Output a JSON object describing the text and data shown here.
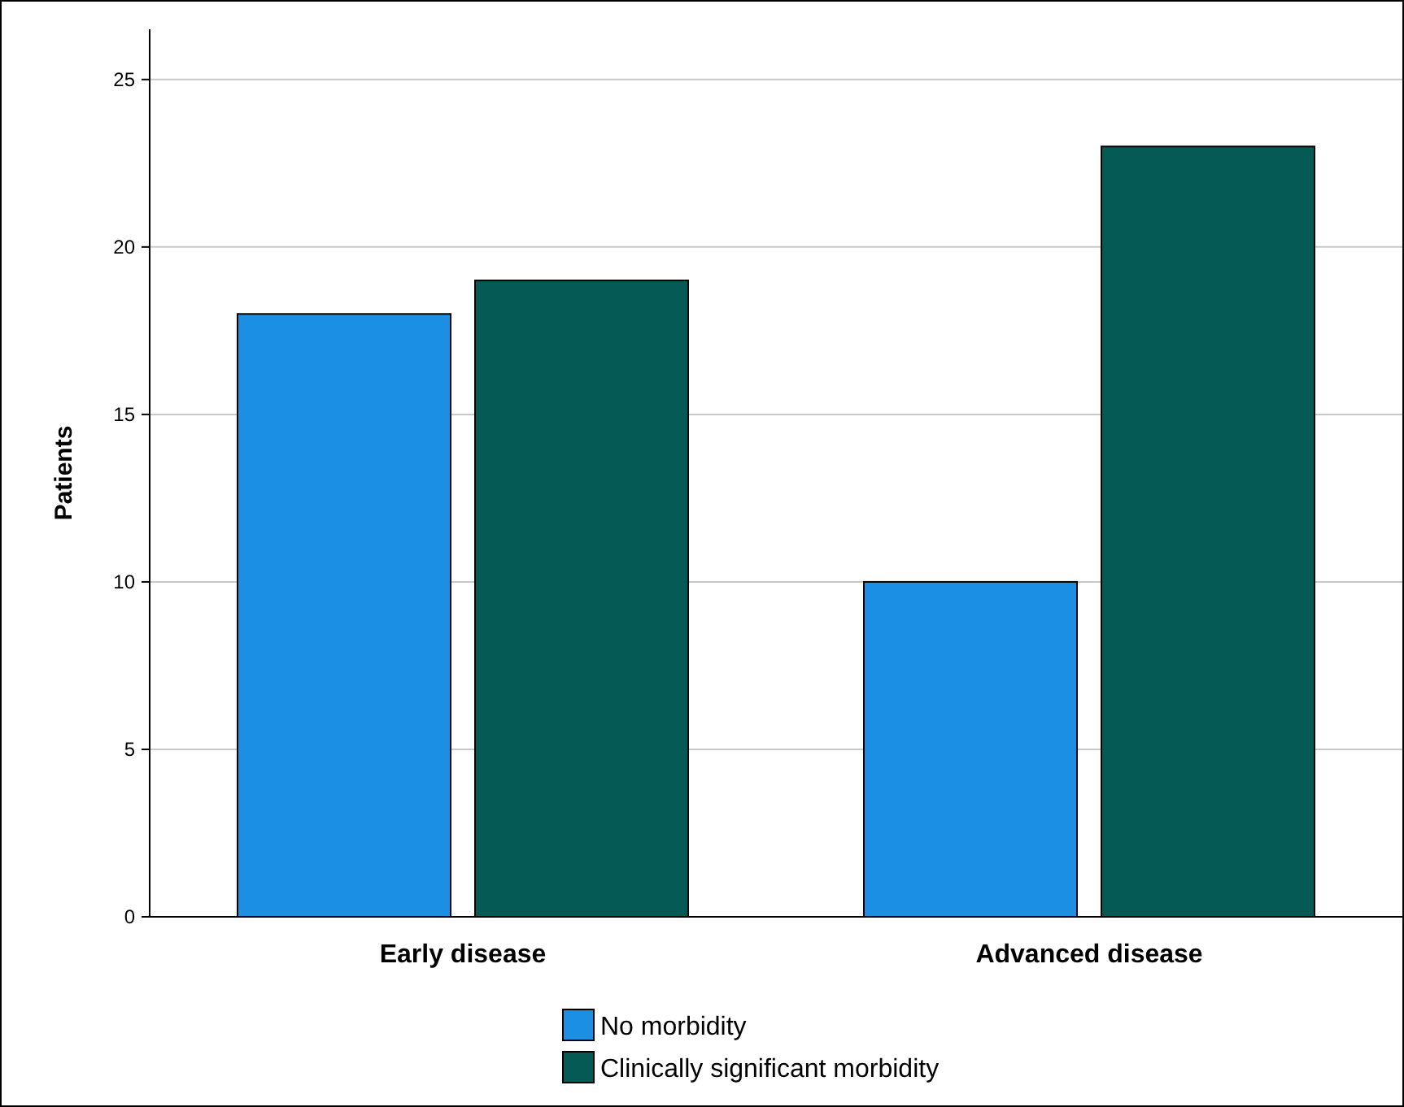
{
  "chart_data": {
    "type": "bar",
    "ylabel": "Patients",
    "categories": [
      "Early disease",
      "Advanced disease"
    ],
    "series": [
      {
        "name": "No morbidity",
        "color": "#1a8fe3",
        "values": [
          18,
          10
        ]
      },
      {
        "name": "Clinically significant morbidity",
        "color": "#055a55",
        "values": [
          19,
          23
        ]
      }
    ],
    "ylim": [
      0,
      26.5
    ],
    "yticks": [
      0,
      5,
      10,
      15,
      20,
      25
    ],
    "grid": "y",
    "legend": "bottom"
  }
}
